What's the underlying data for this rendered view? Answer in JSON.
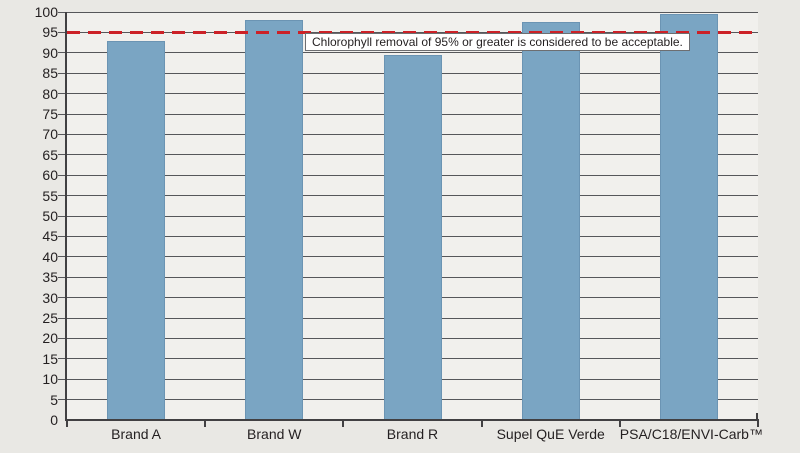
{
  "chart_data": {
    "type": "bar",
    "title": "",
    "xlabel": "",
    "ylabel": "",
    "categories": [
      "Brand A",
      "Brand W",
      "Brand R",
      "Supel QuE Verde",
      "PSA/C18/ENVI-Carb™"
    ],
    "values": [
      93,
      98,
      89.5,
      97.5,
      99.5
    ],
    "ylim": [
      0,
      100
    ],
    "ytick_step": 5,
    "grid": "horizontal",
    "legend": "none",
    "bar_color": "#7aa5c3",
    "reference_line": {
      "value": 95,
      "style": "dashed",
      "color": "#cc2127",
      "label": "Chlorophyll removal of 95% or greater is considered to be acceptable."
    }
  },
  "colors": {
    "outer_background": "#e9e8e4",
    "plot_background": "#f1f0ed",
    "gridline": "#56575a",
    "axis": "#414042",
    "text": "#231f20",
    "annotation_background": "#ffffff",
    "annotation_border": "#6d6e71"
  }
}
